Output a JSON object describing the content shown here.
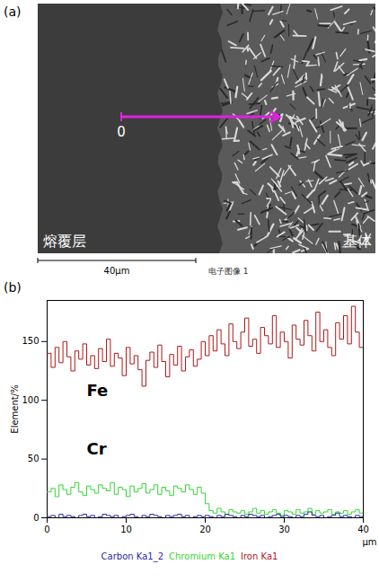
{
  "figure_a": {
    "panel_label": "(a)",
    "regions": [
      "熔覆层",
      "基体"
    ],
    "scan_start_label": "0",
    "scan_length": 40,
    "scale_bar": {
      "label": "40μm",
      "length": 40
    },
    "caption": "电子图像 1"
  },
  "chart_data": {
    "type": "line",
    "panel_label": "(b)",
    "x_label": "μm",
    "y_label": "Element/%",
    "x": [
      0,
      0.5,
      1,
      1.5,
      2,
      2.5,
      3,
      3.5,
      4,
      4.5,
      5,
      5.5,
      6,
      6.5,
      7,
      7.5,
      8,
      8.5,
      9,
      9.5,
      10,
      10.5,
      11,
      11.5,
      12,
      12.5,
      13,
      13.5,
      14,
      14.5,
      15,
      15.5,
      16,
      16.5,
      17,
      17.5,
      18,
      18.5,
      19,
      19.5,
      20,
      20.5,
      21,
      21.5,
      22,
      22.5,
      23,
      23.5,
      24,
      24.5,
      25,
      25.5,
      26,
      26.5,
      27,
      27.5,
      28,
      28.5,
      29,
      29.5,
      30,
      30.5,
      31,
      31.5,
      32,
      32.5,
      33,
      33.5,
      34,
      34.5,
      35,
      35.5,
      36,
      36.5,
      37,
      37.5,
      38,
      38.5,
      39,
      39.5,
      40
    ],
    "series": [
      {
        "name": "Iron Ka1",
        "color": "#b01818",
        "values": [
          140,
          128,
          145,
          132,
          150,
          137,
          125,
          142,
          135,
          148,
          130,
          138,
          127,
          144,
          133,
          152,
          129,
          140,
          136,
          121,
          145,
          131,
          138,
          126,
          112,
          134,
          141,
          128,
          147,
          133,
          120,
          139,
          130,
          146,
          125,
          137,
          143,
          129,
          135,
          150,
          138,
          155,
          142,
          160,
          148,
          138,
          165,
          150,
          144,
          158,
          170,
          146,
          152,
          140,
          162,
          155,
          148,
          172,
          145,
          158,
          150,
          136,
          164,
          152,
          147,
          168,
          155,
          142,
          175,
          150,
          160,
          145,
          138,
          166,
          152,
          172,
          148,
          180,
          158,
          145,
          162
        ]
      },
      {
        "name": "Chromium Ka1",
        "color": "#33d633",
        "values": [
          22,
          25,
          18,
          28,
          24,
          20,
          26,
          30,
          22,
          19,
          27,
          24,
          21,
          28,
          25,
          23,
          30,
          20,
          26,
          24,
          18,
          27,
          22,
          25,
          29,
          21,
          24,
          28,
          20,
          26,
          23,
          19,
          27,
          25,
          22,
          28,
          24,
          20,
          26,
          21,
          12,
          6,
          4,
          8,
          5,
          3,
          7,
          5,
          4,
          6,
          3,
          5,
          8,
          4,
          6,
          3,
          5,
          7,
          4,
          2,
          6,
          5,
          3,
          7,
          4,
          5,
          8,
          3,
          6,
          4,
          5,
          7,
          3,
          5,
          4,
          6,
          3,
          5,
          7,
          4,
          5
        ]
      },
      {
        "name": "Carbon Ka1_2",
        "color": "#2a2aa8",
        "values": [
          1,
          2,
          0,
          3,
          1,
          2,
          1,
          0,
          2,
          3,
          1,
          2,
          0,
          1,
          3,
          2,
          1,
          2,
          0,
          1,
          2,
          3,
          1,
          0,
          2,
          1,
          3,
          2,
          1,
          0,
          2,
          1,
          2,
          3,
          1,
          2,
          0,
          1,
          2,
          1,
          2,
          1,
          0,
          2,
          1,
          3,
          2,
          1,
          0,
          2,
          1,
          3,
          2,
          1,
          2,
          0,
          1,
          2,
          3,
          1,
          2,
          1,
          0,
          2,
          1,
          3,
          5,
          2,
          1,
          2,
          0,
          1,
          2,
          4,
          1,
          2,
          1,
          0,
          2,
          1,
          2
        ]
      }
    ],
    "xlim": [
      0,
      40
    ],
    "xticks": [
      0,
      10,
      20,
      30,
      40
    ],
    "ylim": [
      0,
      185
    ],
    "yticks": [
      0,
      50,
      100,
      150
    ],
    "grid": false,
    "legend": "bottom",
    "annotations": [
      {
        "text": "Fe",
        "x": 5,
        "y": 108
      },
      {
        "text": "Cr",
        "x": 5,
        "y": 58
      }
    ]
  }
}
